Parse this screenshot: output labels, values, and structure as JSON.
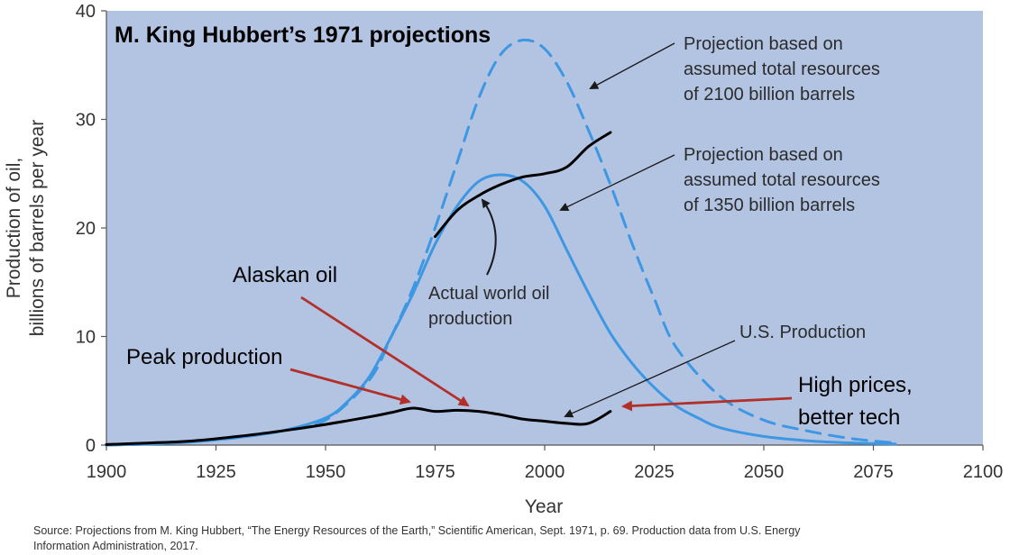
{
  "chart_data": {
    "type": "line",
    "title": "M. King Hubbert’s 1971 projections",
    "xlabel": "Year",
    "ylabel_line1": "Production of oil,",
    "ylabel_line2": "billions of barrels per year",
    "xlim": [
      1900,
      2100
    ],
    "ylim": [
      0,
      40
    ],
    "x_ticks": [
      "1900",
      "1925",
      "1950",
      "1975",
      "2000",
      "2025",
      "2050",
      "2075",
      "2100"
    ],
    "y_ticks": [
      "0",
      "10",
      "20",
      "30",
      "40"
    ],
    "x_tick_values": [
      1900,
      1925,
      1950,
      1975,
      2000,
      2025,
      2050,
      2075,
      2100
    ],
    "y_tick_values": [
      0,
      10,
      20,
      30,
      40
    ],
    "colors": {
      "plot_background": "#b3c4e3",
      "projection": "#3d97e2",
      "actual": "#000000",
      "annotation_arrow_black": "#1a1a1a",
      "annotation_arrow_red": "#b2302a",
      "title_text": "#000000"
    },
    "series": [
      {
        "key": "projection_2100",
        "style": "dashed",
        "color": "#3d97e2",
        "x": [
          1900,
          1910,
          1920,
          1930,
          1940,
          1950,
          1960,
          1965,
          1970,
          1975,
          1980,
          1985,
          1990,
          1995,
          2000,
          2005,
          2010,
          2015,
          2020,
          2025,
          2030,
          2040,
          2050,
          2060,
          2070,
          2080
        ],
        "y": [
          0,
          0.1,
          0.3,
          0.7,
          1.3,
          2.3,
          6.0,
          10.0,
          14.5,
          20.0,
          26.0,
          32.0,
          36.0,
          37.3,
          36.5,
          33.5,
          29.0,
          24.0,
          18.5,
          13.5,
          9.0,
          4.5,
          2.3,
          1.3,
          0.6,
          0.2
        ]
      },
      {
        "key": "projection_1350",
        "style": "solid",
        "color": "#3d97e2",
        "x": [
          1900,
          1910,
          1920,
          1930,
          1940,
          1950,
          1955,
          1960,
          1965,
          1970,
          1975,
          1980,
          1985,
          1990,
          1995,
          2000,
          2005,
          2010,
          2015,
          2020,
          2025,
          2030,
          2035,
          2040,
          2050,
          2060,
          2070,
          2080
        ],
        "y": [
          0,
          0.1,
          0.3,
          0.7,
          1.3,
          2.5,
          4.0,
          6.3,
          10.0,
          14.0,
          18.5,
          22.0,
          24.3,
          24.9,
          24.3,
          22.0,
          18.0,
          14.0,
          10.3,
          7.5,
          5.3,
          3.6,
          2.5,
          1.6,
          0.8,
          0.4,
          0.2,
          0.1
        ]
      },
      {
        "key": "actual_world",
        "style": "solid",
        "color": "#000000",
        "x": [
          1975,
          1980,
          1985,
          1990,
          1995,
          2000,
          2005,
          2010,
          2015
        ],
        "y": [
          19.2,
          21.6,
          23.0,
          24.0,
          24.7,
          25.0,
          25.6,
          27.5,
          28.8
        ]
      },
      {
        "key": "us_production",
        "style": "solid",
        "color": "#000000",
        "x": [
          1900,
          1910,
          1920,
          1930,
          1940,
          1950,
          1960,
          1965,
          1970,
          1975,
          1980,
          1985,
          1990,
          1995,
          2000,
          2005,
          2010,
          2015
        ],
        "y": [
          0.05,
          0.2,
          0.4,
          0.8,
          1.3,
          1.9,
          2.6,
          3.0,
          3.4,
          3.1,
          3.2,
          3.1,
          2.8,
          2.4,
          2.2,
          2.0,
          2.0,
          3.1
        ]
      }
    ],
    "annotations": [
      {
        "key": "proj2100_label",
        "lines": [
          "Projection based on",
          "assumed total resources",
          "of 2100 billion barrels"
        ]
      },
      {
        "key": "proj1350_label",
        "lines": [
          "Projection based on",
          "assumed total resources",
          "of 1350 billion barrels"
        ]
      },
      {
        "key": "actual_label",
        "lines": [
          "Actual world oil",
          "production"
        ]
      },
      {
        "key": "us_label",
        "lines": [
          "U.S. Production"
        ]
      },
      {
        "key": "alaskan_label",
        "lines": [
          "Alaskan oil"
        ]
      },
      {
        "key": "peak_label",
        "lines": [
          "Peak production"
        ]
      },
      {
        "key": "high_prices_label",
        "lines": [
          "High prices,",
          "better tech"
        ]
      }
    ],
    "source_line1": "Source: Projections from M. King Hubbert, “The Energy Resources of the Earth,” Scientific American, Sept. 1971, p. 69. Production data from U.S. Energy",
    "source_line2": "Information Administration, 2017."
  }
}
